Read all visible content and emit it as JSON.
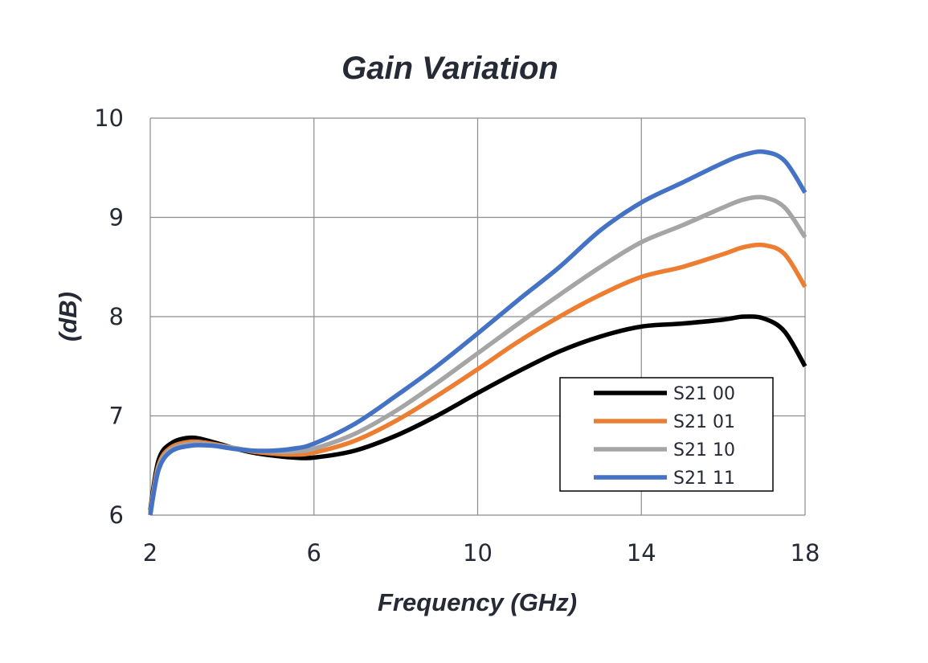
{
  "chart_data": {
    "type": "line",
    "title": "Gain Variation",
    "xlabel": "Frequency (GHz)",
    "ylabel": "(dB)",
    "xlim": [
      2,
      18
    ],
    "ylim": [
      6,
      10
    ],
    "xticks": [
      "2",
      "6",
      "10",
      "14",
      "18"
    ],
    "yticks": [
      "6",
      "7",
      "8",
      "9",
      "10"
    ],
    "grid": true,
    "legend_position": "lower-right",
    "x": [
      2,
      2.2,
      2.5,
      3,
      3.5,
      4,
      4.5,
      5,
      5.5,
      6,
      7,
      8,
      9,
      10,
      11,
      12,
      13,
      14,
      15,
      16,
      16.5,
      17,
      17.5,
      18
    ],
    "series": [
      {
        "name": "S21 00",
        "color": "#000000",
        "values": [
          6.05,
          6.55,
          6.72,
          6.78,
          6.74,
          6.68,
          6.63,
          6.6,
          6.58,
          6.58,
          6.65,
          6.8,
          7.0,
          7.23,
          7.45,
          7.65,
          7.8,
          7.9,
          7.93,
          7.97,
          8.0,
          7.98,
          7.85,
          7.5
        ]
      },
      {
        "name": "S21 01",
        "color": "#ed7d31",
        "values": [
          6.03,
          6.5,
          6.68,
          6.74,
          6.72,
          6.68,
          6.64,
          6.62,
          6.61,
          6.63,
          6.75,
          6.95,
          7.2,
          7.47,
          7.75,
          8.0,
          8.22,
          8.4,
          8.5,
          8.63,
          8.7,
          8.72,
          8.63,
          8.3
        ]
      },
      {
        "name": "S21 10",
        "color": "#a5a5a5",
        "values": [
          6.02,
          6.48,
          6.66,
          6.72,
          6.71,
          6.68,
          6.65,
          6.64,
          6.64,
          6.67,
          6.82,
          7.05,
          7.33,
          7.63,
          7.93,
          8.22,
          8.5,
          8.75,
          8.92,
          9.1,
          9.18,
          9.2,
          9.1,
          8.8
        ]
      },
      {
        "name": "S21 11",
        "color": "#4472c4",
        "values": [
          6.0,
          6.45,
          6.64,
          6.7,
          6.7,
          6.67,
          6.65,
          6.65,
          6.67,
          6.72,
          6.92,
          7.2,
          7.5,
          7.83,
          8.17,
          8.5,
          8.87,
          9.15,
          9.35,
          9.55,
          9.63,
          9.66,
          9.57,
          9.25
        ]
      }
    ]
  }
}
